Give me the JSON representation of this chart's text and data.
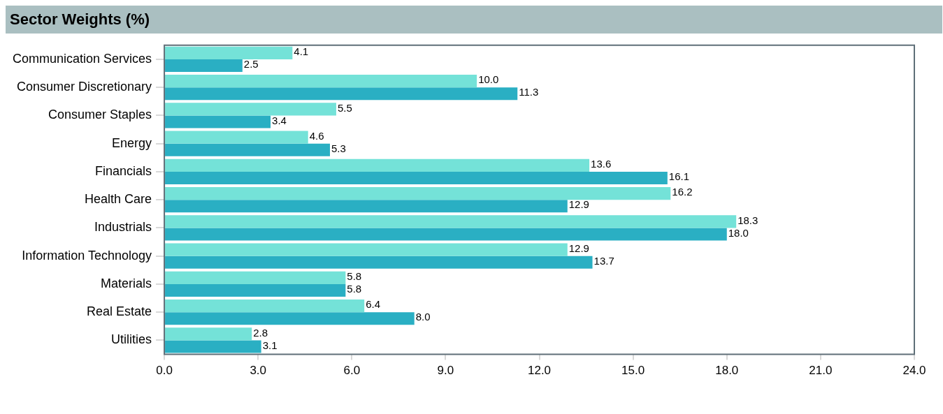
{
  "chart_data": {
    "type": "bar",
    "orientation": "horizontal",
    "title": "Sector Weights (%)",
    "categories": [
      "Communication Services",
      "Consumer Discretionary",
      "Consumer Staples",
      "Energy",
      "Financials",
      "Health Care",
      "Industrials",
      "Information Technology",
      "Materials",
      "Real Estate",
      "Utilities"
    ],
    "series": [
      {
        "color": "#74e2d8",
        "values": [
          4.1,
          10.0,
          5.5,
          4.6,
          13.6,
          16.2,
          18.3,
          12.9,
          5.8,
          6.4,
          2.8
        ],
        "value_labels": [
          "4.1",
          "10.0",
          "5.5",
          "4.6",
          "13.6",
          "16.2",
          "18.3",
          "12.9",
          "5.8",
          "6.4",
          "2.8"
        ]
      },
      {
        "color": "#2aafc3",
        "values": [
          2.5,
          11.3,
          3.4,
          5.3,
          16.1,
          12.9,
          18.0,
          13.7,
          5.8,
          8.0,
          3.1
        ],
        "value_labels": [
          "2.5",
          "11.3",
          "3.4",
          "5.3",
          "16.1",
          "12.9",
          "18.0",
          "13.7",
          "5.8",
          "8.0",
          "3.1"
        ]
      }
    ],
    "xlim": [
      0,
      24
    ],
    "xticks": [
      {
        "value": 0,
        "label": "0.0"
      },
      {
        "value": 3,
        "label": "3.0"
      },
      {
        "value": 6,
        "label": "6.0"
      },
      {
        "value": 9,
        "label": "9.0"
      },
      {
        "value": 12,
        "label": "12.0"
      },
      {
        "value": 15,
        "label": "15.0"
      },
      {
        "value": 18,
        "label": "18.0"
      },
      {
        "value": 21,
        "label": "21.0"
      },
      {
        "value": 24,
        "label": "24.0"
      }
    ],
    "grid": false,
    "legend": false
  }
}
